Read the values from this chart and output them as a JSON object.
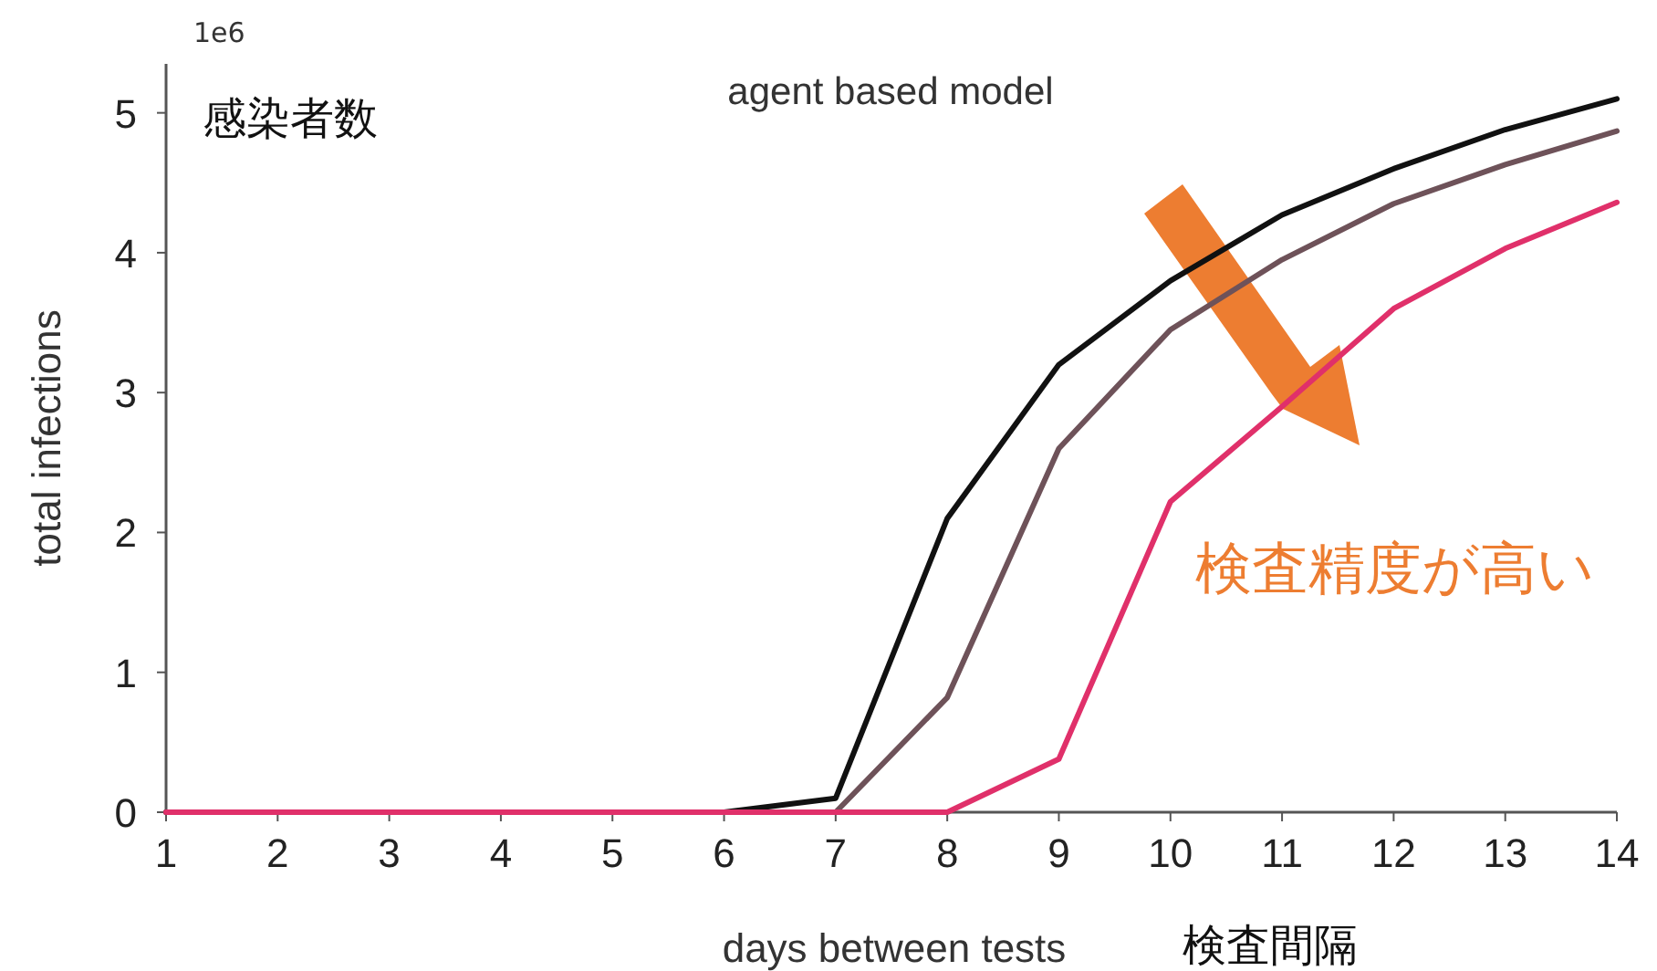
{
  "chart_data": {
    "type": "line",
    "title": "agent based model",
    "xlabel": "days between tests",
    "ylabel": "total infections",
    "annotations": [
      "1e6",
      "感染者数",
      "検査精度が高い",
      "検査間隔"
    ],
    "x": [
      1,
      2,
      3,
      4,
      5,
      6,
      7,
      8,
      9,
      10,
      11,
      12,
      13,
      14
    ],
    "series": [
      {
        "color": "#111111",
        "values": [
          0,
          0,
          0,
          0,
          0,
          0,
          0.1,
          2.1,
          3.2,
          3.8,
          4.27,
          4.6,
          4.88,
          5.1
        ]
      },
      {
        "color": "#6e5259",
        "values": [
          0,
          0,
          0,
          0,
          0,
          0,
          0,
          0.82,
          2.6,
          3.45,
          3.95,
          4.35,
          4.63,
          4.87
        ]
      },
      {
        "color": "#e0306a",
        "values": [
          0,
          0,
          0,
          0,
          0,
          0,
          0,
          0,
          0.38,
          2.22,
          2.9,
          3.6,
          4.03,
          4.36
        ]
      }
    ],
    "xlim": [
      1,
      14
    ],
    "ylim": [
      0,
      5.35
    ],
    "xticks": [
      1,
      2,
      3,
      4,
      5,
      6,
      7,
      8,
      9,
      10,
      11,
      12,
      13,
      14
    ],
    "yticks": [
      0,
      1,
      2,
      3,
      4,
      5
    ],
    "grid": false,
    "marker": "none",
    "line_style": "solid"
  }
}
